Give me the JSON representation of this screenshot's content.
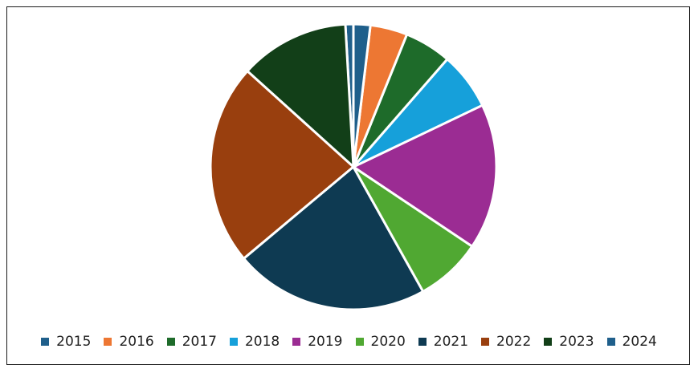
{
  "chart_data": {
    "type": "pie",
    "title": "",
    "legend_position": "bottom",
    "slices": [
      {
        "label": "2015",
        "value": 1.9,
        "color": "#1f5f8b"
      },
      {
        "label": "2016",
        "value": 4.2,
        "color": "#ed7733"
      },
      {
        "label": "2017",
        "value": 5.3,
        "color": "#1e6b2a"
      },
      {
        "label": "2018",
        "value": 6.5,
        "color": "#16a0da"
      },
      {
        "label": "2019",
        "value": 16.5,
        "color": "#9b2c93"
      },
      {
        "label": "2020",
        "value": 7.5,
        "color": "#50a832"
      },
      {
        "label": "2021",
        "value": 22.0,
        "color": "#0e3a52"
      },
      {
        "label": "2022",
        "value": 22.8,
        "color": "#993f0e"
      },
      {
        "label": "2023",
        "value": 12.4,
        "color": "#123f18"
      },
      {
        "label": "2024",
        "value": 0.9,
        "color": "#1f5f8b"
      }
    ]
  }
}
